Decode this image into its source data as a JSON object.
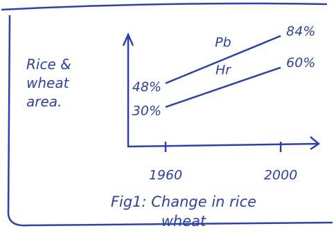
{
  "chart_data": {
    "type": "line",
    "y_label": "Rice & wheat area.",
    "caption": "Fig1: Change in rice wheat",
    "x": [
      1960,
      2000
    ],
    "xlim": [
      1947,
      2012
    ],
    "xticks": [
      1960,
      2000
    ],
    "ylim": [
      0,
      85
    ],
    "series": [
      {
        "name": "Pb",
        "color": "#2b3fb5",
        "values": [
          48,
          84
        ],
        "value_labels": [
          "48%",
          "84%"
        ]
      },
      {
        "name": "Hr",
        "color": "#2b3fb5",
        "values": [
          30,
          60
        ],
        "value_labels": [
          "30%",
          "60%"
        ]
      }
    ]
  }
}
